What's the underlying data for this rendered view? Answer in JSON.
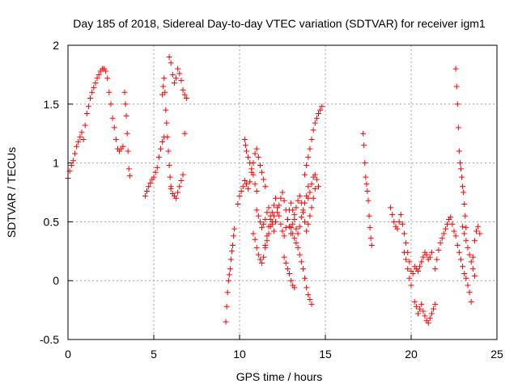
{
  "chart_data": {
    "type": "scatter",
    "title": "Day 185 of 2018, Sidereal Day-to-day VTEC variation (SDTVAR) for receiver igm1",
    "xlabel": "GPS time / hours",
    "ylabel": "SDTVAR / TECUs",
    "xlim": [
      0,
      25
    ],
    "ylim": [
      -0.5,
      2
    ],
    "xticks": [
      0,
      5,
      10,
      15,
      20,
      25
    ],
    "xtick_labels": [
      "0",
      "5",
      "10",
      "15",
      "20",
      "25"
    ],
    "yticks": [
      -0.5,
      0,
      0.5,
      1,
      1.5,
      2
    ],
    "ytick_labels": [
      "-0.5",
      "0",
      "0.5",
      "1",
      "1.5",
      "2"
    ],
    "grid": true,
    "marker": "+",
    "color": "#ff0000",
    "series": [
      {
        "name": "SDTVAR",
        "segments": [
          {
            "x": [
              0.0,
              0.1,
              0.2,
              0.3,
              0.4,
              0.5,
              0.6,
              0.7,
              0.8,
              0.9,
              1.0,
              1.1,
              1.2,
              1.3,
              1.4,
              1.5,
              1.6,
              1.7,
              1.8,
              1.9,
              2.0,
              2.1,
              2.2,
              2.3,
              2.4,
              2.5,
              2.6,
              2.7,
              2.8,
              2.9,
              3.0,
              3.1,
              3.2
            ],
            "y": [
              0.87,
              0.93,
              0.98,
              1.02,
              1.08,
              1.14,
              1.18,
              1.22,
              1.26,
              1.2,
              1.32,
              1.42,
              1.48,
              1.55,
              1.6,
              1.64,
              1.68,
              1.72,
              1.75,
              1.78,
              1.8,
              1.8,
              1.78,
              1.72,
              1.6,
              1.5,
              1.38,
              1.3,
              1.2,
              1.12,
              1.1,
              1.12,
              1.14
            ]
          },
          {
            "x": [
              3.3,
              3.35,
              3.4,
              3.45,
              3.5,
              3.55,
              3.6
            ],
            "y": [
              1.6,
              1.5,
              1.4,
              1.25,
              1.1,
              0.95,
              0.89
            ]
          },
          {
            "x": [
              4.5,
              4.6,
              4.7,
              4.8,
              4.9,
              5.0,
              5.1,
              5.2,
              5.3,
              5.4,
              5.5,
              5.6
            ],
            "y": [
              0.72,
              0.76,
              0.8,
              0.83,
              0.86,
              0.88,
              0.92,
              0.96,
              1.05,
              1.12,
              1.18,
              1.22
            ]
          },
          {
            "x": [
              5.5,
              5.55,
              5.6,
              5.65,
              5.7,
              5.75,
              5.8,
              5.85,
              5.9,
              5.95,
              6.0
            ],
            "y": [
              1.58,
              1.65,
              1.72,
              1.6,
              1.45,
              1.34,
              1.22,
              1.1,
              0.98,
              0.88,
              0.8
            ]
          },
          {
            "x": [
              6.0,
              6.1,
              6.2,
              6.3,
              6.4,
              6.5,
              6.6,
              6.7,
              6.8
            ],
            "y": [
              0.78,
              0.74,
              0.72,
              0.7,
              0.75,
              0.8,
              0.85,
              0.9,
              1.25
            ]
          },
          {
            "x": [
              5.9,
              6.0,
              6.1,
              6.2,
              6.3,
              6.4,
              6.5,
              6.6,
              6.7,
              6.8,
              6.9
            ],
            "y": [
              1.9,
              1.85,
              1.75,
              1.68,
              1.72,
              1.8,
              1.76,
              1.7,
              1.62,
              1.58,
              1.55
            ]
          },
          {
            "x": [
              9.2,
              9.25,
              9.3,
              9.35,
              9.4,
              9.45,
              9.5,
              9.55,
              9.6,
              9.65,
              9.7
            ],
            "y": [
              -0.35,
              -0.22,
              -0.1,
              0.0,
              0.05,
              0.1,
              0.18,
              0.25,
              0.3,
              0.38,
              0.44
            ]
          },
          {
            "x": [
              9.9,
              10.0,
              10.1,
              10.2,
              10.3,
              10.4,
              10.5,
              10.6,
              10.7,
              10.8,
              10.9,
              11.0,
              11.1,
              11.2,
              11.3,
              11.4,
              11.5
            ],
            "y": [
              0.65,
              0.72,
              0.76,
              0.8,
              0.85,
              0.82,
              0.78,
              0.84,
              0.92,
              1.0,
              1.08,
              1.12,
              1.05,
              0.98,
              0.92,
              0.86,
              0.8
            ]
          },
          {
            "x": [
              10.3,
              10.35,
              10.4,
              10.5,
              10.6,
              10.7,
              10.8,
              10.9,
              11.0
            ],
            "y": [
              1.2,
              1.15,
              1.1,
              1.05,
              1.0,
              0.95,
              0.9,
              0.82,
              0.76
            ]
          },
          {
            "x": [
              10.8,
              10.9,
              11.0,
              11.1,
              11.2,
              11.3,
              11.4,
              11.5,
              11.6,
              11.7,
              11.8,
              11.9,
              12.0
            ],
            "y": [
              0.4,
              0.35,
              0.28,
              0.22,
              0.18,
              0.15,
              0.2,
              0.28,
              0.34,
              0.4,
              0.46,
              0.5,
              0.55
            ]
          },
          {
            "x": [
              11.0,
              11.1,
              11.2,
              11.3,
              11.4,
              11.5,
              11.6,
              11.7,
              11.8,
              11.9,
              12.0,
              12.1,
              12.2,
              12.3,
              12.4,
              12.5,
              12.6,
              12.7,
              12.8,
              12.9,
              13.0,
              13.1,
              13.2,
              13.3,
              13.4,
              13.5,
              13.6,
              13.7,
              13.8,
              13.9,
              14.0,
              14.1,
              14.2,
              14.3,
              14.4
            ],
            "y": [
              0.6,
              0.55,
              0.5,
              0.45,
              0.48,
              0.52,
              0.58,
              0.62,
              0.55,
              0.48,
              0.42,
              0.5,
              0.58,
              0.64,
              0.7,
              0.75,
              0.68,
              0.6,
              0.52,
              0.46,
              0.4,
              0.48,
              0.56,
              0.62,
              0.68,
              0.72,
              0.66,
              0.58,
              0.5,
              0.42,
              0.48,
              0.55,
              0.62,
              0.7,
              0.78
            ]
          },
          {
            "x": [
              11.5,
              11.6,
              11.7,
              11.8,
              11.9,
              12.0,
              12.1,
              12.2,
              12.3,
              12.4,
              12.5,
              12.6,
              12.7,
              12.8,
              12.9,
              13.0,
              13.1,
              13.2,
              13.3,
              13.4,
              13.5,
              13.6,
              13.7,
              13.8,
              13.9,
              14.0
            ],
            "y": [
              0.3,
              0.38,
              0.46,
              0.52,
              0.58,
              0.64,
              0.7,
              0.62,
              0.55,
              0.48,
              0.42,
              0.38,
              0.45,
              0.52,
              0.6,
              0.66,
              0.6,
              0.52,
              0.44,
              0.4,
              0.46,
              0.54,
              0.6,
              0.66,
              0.72,
              0.8
            ]
          },
          {
            "x": [
              12.6,
              12.7,
              12.8,
              12.9,
              13.0,
              13.1,
              13.2
            ],
            "y": [
              0.2,
              0.15,
              0.1,
              0.06,
              0.0,
              -0.04,
              -0.06
            ]
          },
          {
            "x": [
              13.0,
              13.1,
              13.2,
              13.3,
              13.4,
              13.5,
              13.6,
              13.7,
              13.8,
              13.9,
              14.0,
              14.1,
              14.2
            ],
            "y": [
              0.45,
              0.4,
              0.36,
              0.32,
              0.28,
              0.22,
              0.16,
              0.1,
              0.02,
              -0.06,
              -0.12,
              -0.16,
              -0.2
            ]
          },
          {
            "x": [
              13.8,
              13.9,
              14.0,
              14.1,
              14.2,
              14.3,
              14.4,
              14.5,
              14.6,
              14.7,
              14.8
            ],
            "y": [
              0.9,
              0.98,
              1.05,
              1.12,
              1.2,
              1.28,
              1.34,
              1.38,
              1.42,
              1.45,
              1.48
            ]
          },
          {
            "x": [
              14.0,
              14.1,
              14.2,
              14.3,
              14.4,
              14.5,
              14.6
            ],
            "y": [
              0.7,
              0.75,
              0.82,
              0.88,
              0.9,
              0.86,
              0.8
            ]
          },
          {
            "x": [
              17.2,
              17.25,
              17.3,
              17.35,
              17.4,
              17.45,
              17.5,
              17.55,
              17.6,
              17.65,
              17.7
            ],
            "y": [
              1.25,
              1.15,
              1.0,
              0.88,
              0.82,
              0.76,
              0.68,
              0.55,
              0.45,
              0.36,
              0.3
            ]
          },
          {
            "x": [
              18.8,
              18.9,
              19.0,
              19.1,
              19.2,
              19.3,
              19.4,
              19.5,
              19.6,
              19.7,
              19.8,
              19.9,
              20.0
            ],
            "y": [
              0.62,
              0.56,
              0.5,
              0.46,
              0.44,
              0.5,
              0.56,
              0.48,
              0.4,
              0.32,
              0.24,
              0.16,
              0.08
            ]
          },
          {
            "x": [
              19.6,
              19.7,
              19.8,
              19.9,
              20.0,
              20.1,
              20.2,
              20.3,
              20.4,
              20.5,
              20.6,
              20.7,
              20.8,
              20.9,
              21.0,
              21.1,
              21.2
            ],
            "y": [
              0.24,
              0.18,
              0.1,
              0.02,
              -0.04,
              0.06,
              0.12,
              0.1,
              0.08,
              0.12,
              0.16,
              0.2,
              0.24,
              0.22,
              0.18,
              0.2,
              0.24
            ]
          },
          {
            "x": [
              20.2,
              20.3,
              20.4,
              20.5,
              20.6,
              20.7,
              20.8,
              20.9,
              21.0,
              21.1,
              21.2,
              21.3,
              21.4
            ],
            "y": [
              -0.18,
              -0.22,
              -0.28,
              -0.24,
              -0.2,
              -0.26,
              -0.3,
              -0.34,
              -0.36,
              -0.32,
              -0.28,
              -0.24,
              -0.2
            ]
          },
          {
            "x": [
              21.4,
              21.5,
              21.6,
              21.7,
              21.8,
              21.9,
              22.0,
              22.1,
              22.2,
              22.3,
              22.4,
              22.5,
              22.6
            ],
            "y": [
              0.1,
              0.18,
              0.26,
              0.32,
              0.36,
              0.4,
              0.44,
              0.48,
              0.52,
              0.54,
              0.48,
              0.42,
              0.38
            ]
          },
          {
            "x": [
              22.6,
              22.65,
              22.7,
              22.75,
              22.8,
              22.85,
              22.9,
              22.95,
              23.0,
              23.05,
              23.1,
              23.15,
              23.2
            ],
            "y": [
              1.8,
              1.65,
              1.5,
              1.3,
              1.1,
              1.0,
              0.95,
              0.88,
              0.8,
              0.75,
              0.65,
              0.55,
              0.45
            ]
          },
          {
            "x": [
              22.7,
              22.8,
              22.9,
              23.0,
              23.1,
              23.2,
              23.3,
              23.4,
              23.5,
              23.6,
              23.7,
              23.8,
              23.9,
              24.0
            ],
            "y": [
              0.3,
              0.24,
              0.18,
              0.12,
              0.06,
              0.02,
              -0.04,
              -0.1,
              -0.18,
              0.2,
              0.34,
              0.42,
              0.46,
              0.4
            ]
          },
          {
            "x": [
              23.0,
              23.1,
              23.2,
              23.3,
              23.4,
              23.5,
              23.6,
              23.7
            ],
            "y": [
              0.46,
              0.4,
              0.34,
              0.28,
              0.22,
              0.16,
              0.1,
              0.04
            ]
          }
        ]
      }
    ]
  }
}
